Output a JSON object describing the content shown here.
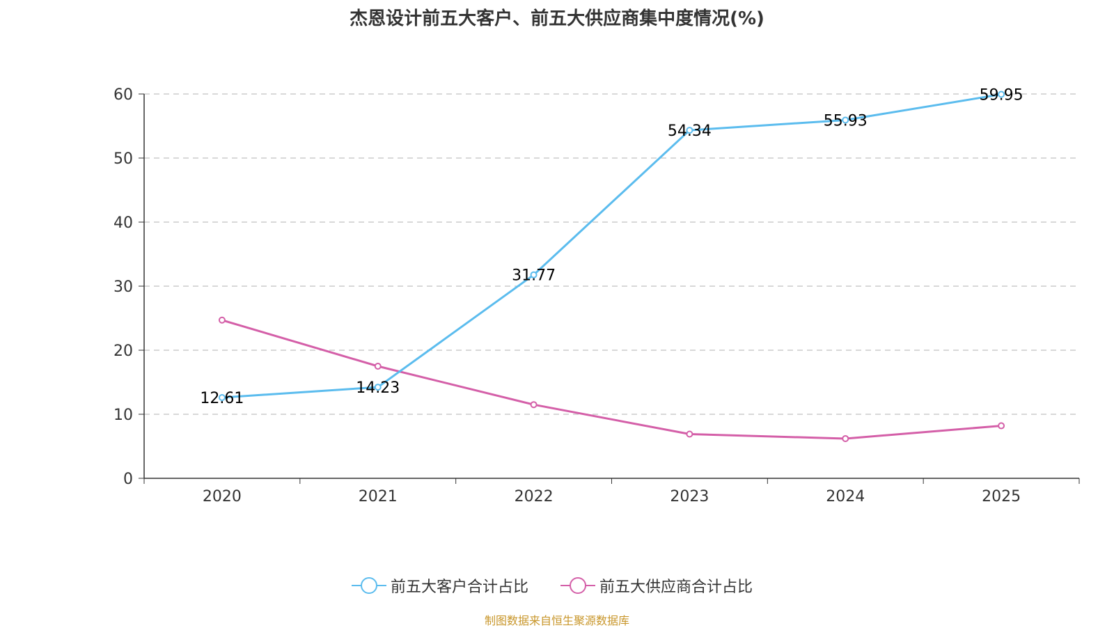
{
  "chart_data": {
    "type": "line",
    "title": "杰恩设计前五大客户、前五大供应商集中度情况(%)",
    "categories": [
      "2020",
      "2021",
      "2022",
      "2023",
      "2024",
      "2025"
    ],
    "ylim": [
      0,
      60
    ],
    "yticks": [
      0,
      10,
      20,
      30,
      40,
      50,
      60
    ],
    "grid": true,
    "legend_position": "bottom",
    "series": [
      {
        "name": "前五大客户合计占比",
        "color": "#5bbcee",
        "values": [
          12.61,
          14.23,
          31.77,
          54.34,
          55.93,
          59.95
        ],
        "labels": [
          "12.61",
          "14.23",
          "31.77",
          "54.34",
          "55.93",
          "59.95"
        ]
      },
      {
        "name": "前五大供应商合计占比",
        "color": "#d45fa8",
        "values": [
          24.7,
          17.5,
          11.5,
          6.9,
          6.2,
          8.2
        ]
      }
    ]
  },
  "source_note": "制图数据来自恒生聚源数据库"
}
